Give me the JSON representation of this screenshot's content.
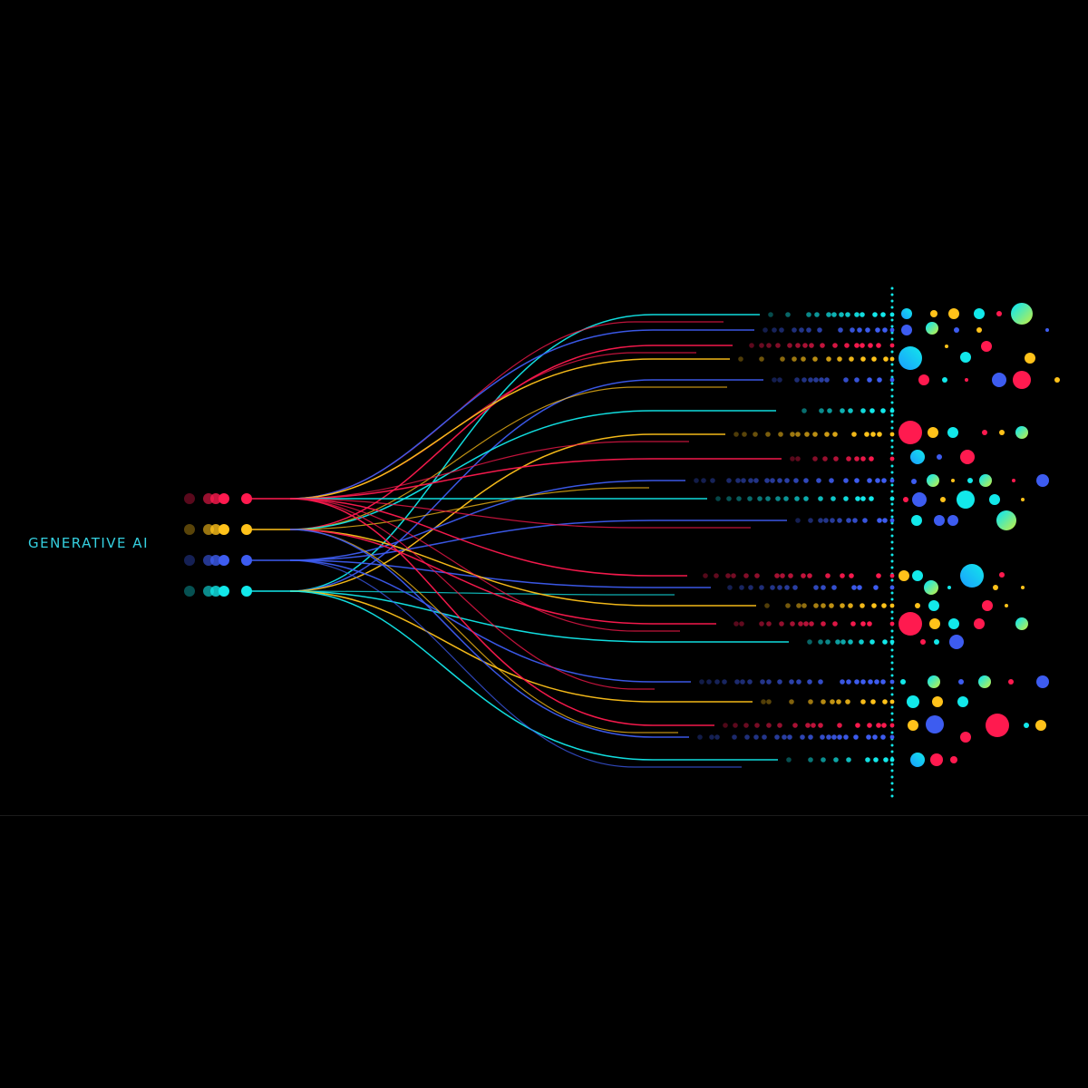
{
  "title": "GENERATIVE AI",
  "palette": {
    "red": "#ff1a4f",
    "yellow": "#ffc21a",
    "blue": "#3d5cf0",
    "cyan": "#12e8ea",
    "gradient_start": "#00e5ff",
    "gradient_end": "#c8f040",
    "background": "#000000"
  },
  "input_nodes": [
    "red",
    "yellow",
    "blue",
    "cyan"
  ],
  "output_rows": [
    {
      "color": "cyan"
    },
    {
      "color": "blue"
    },
    {
      "color": "red"
    },
    {
      "color": "yellow"
    },
    {
      "color": "blue"
    },
    {
      "color": "cyan"
    },
    {
      "color": "yellow"
    },
    {
      "color": "red"
    },
    {
      "color": "blue"
    },
    {
      "color": "cyan"
    },
    {
      "color": "blue"
    },
    {
      "color": "red"
    },
    {
      "color": "blue"
    },
    {
      "color": "yellow"
    },
    {
      "color": "red"
    },
    {
      "color": "cyan"
    },
    {
      "color": "blue"
    },
    {
      "color": "yellow"
    },
    {
      "color": "red"
    },
    {
      "color": "blue"
    },
    {
      "color": "cyan"
    }
  ]
}
